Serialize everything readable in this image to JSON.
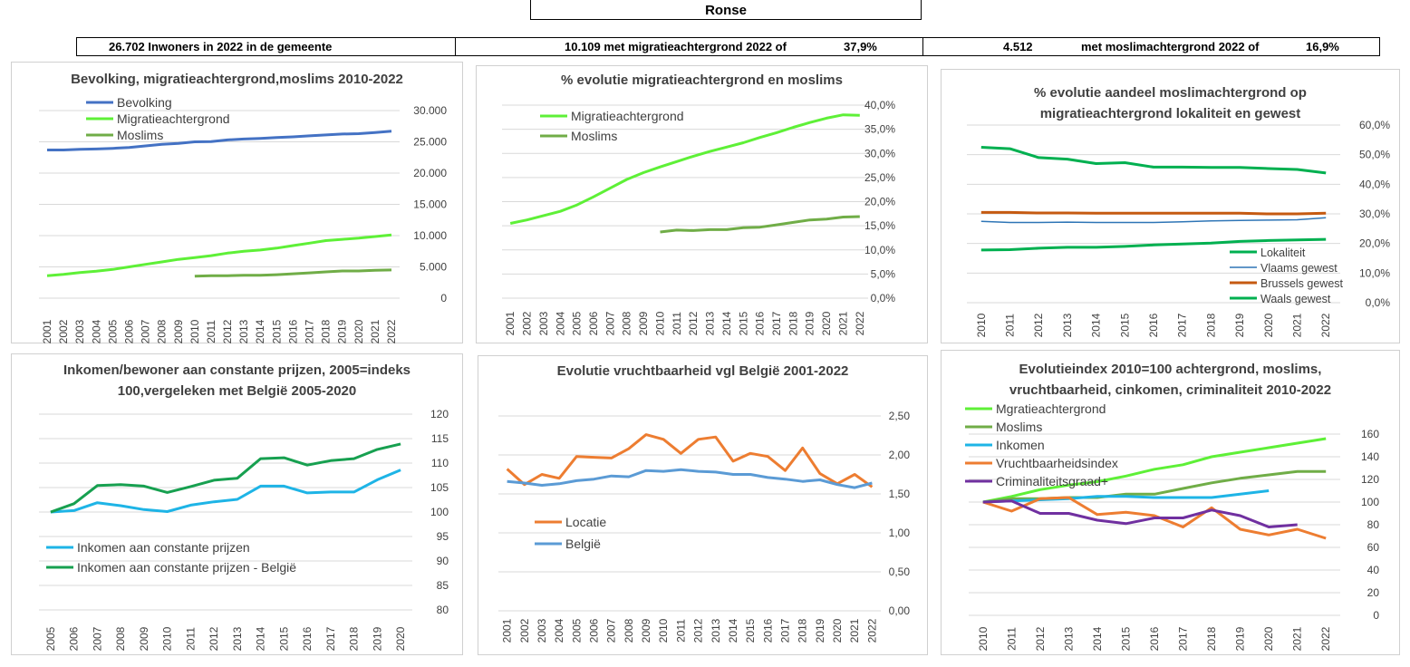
{
  "page_title": "Ronse",
  "stats": {
    "inhabitants": "26.702 Inwoners in 2022 in de gemeente",
    "migration": "10.109 met migratieachtergrond 2022 of",
    "migration_pct": "37,9%",
    "muslim_count": "4.512",
    "muslim_label": "met moslimachtergrond 2022 of",
    "muslim_pct": "16,9%"
  },
  "chart_data": [
    {
      "type": "line",
      "title": "Bevolking, migratieachtergrond,moslims  2010-2022",
      "x": [
        "2001",
        "2002",
        "2003",
        "2004",
        "2005",
        "2006",
        "2007",
        "2008",
        "2009",
        "2010",
        "2011",
        "2012",
        "2013",
        "2014",
        "2015",
        "2016",
        "2017",
        "2018",
        "2019",
        "2020",
        "2021",
        "2022"
      ],
      "ylim": [
        0,
        30000
      ],
      "yticks": [
        "0",
        "5.000",
        "10.000",
        "15.000",
        "20.000",
        "25.000",
        "30.000"
      ],
      "ytick_values": [
        0,
        5000,
        10000,
        15000,
        20000,
        25000,
        30000
      ],
      "legend": "top-left",
      "series": [
        {
          "name": "Bevolking",
          "color": "#4472c4",
          "values": [
            23700,
            23700,
            23800,
            23850,
            23950,
            24100,
            24350,
            24600,
            24750,
            25000,
            25050,
            25300,
            25450,
            25550,
            25700,
            25800,
            25950,
            26100,
            26250,
            26300,
            26500,
            26702
          ]
        },
        {
          "name": "Migratieachtergrond",
          "color": "#5ef037",
          "values": [
            3600,
            3800,
            4100,
            4300,
            4600,
            5000,
            5400,
            5800,
            6200,
            6500,
            6800,
            7200,
            7500,
            7700,
            8000,
            8400,
            8800,
            9200,
            9400,
            9600,
            9850,
            10109
          ]
        },
        {
          "name": "Moslims",
          "color": "#70ad47",
          "values": [
            null,
            null,
            null,
            null,
            null,
            null,
            null,
            null,
            null,
            3500,
            3600,
            3600,
            3650,
            3650,
            3750,
            3900,
            4050,
            4200,
            4350,
            4350,
            4450,
            4512
          ]
        }
      ]
    },
    {
      "type": "line",
      "title": "% evolutie migratieachtergrond  en moslims",
      "x": [
        "2001",
        "2002",
        "2003",
        "2004",
        "2005",
        "2006",
        "2007",
        "2008",
        "2009",
        "2010",
        "2011",
        "2012",
        "2013",
        "2014",
        "2015",
        "2016",
        "2017",
        "2018",
        "2019",
        "2020",
        "2021",
        "2022"
      ],
      "ylim": [
        0,
        0.4
      ],
      "yticks": [
        "0,0%",
        "5,0%",
        "10,0%",
        "15,0%",
        "20,0%",
        "25,0%",
        "30,0%",
        "35,0%",
        "40,0%"
      ],
      "ytick_values": [
        0,
        0.05,
        0.1,
        0.15,
        0.2,
        0.25,
        0.3,
        0.35,
        0.4
      ],
      "legend": "top-left",
      "series": [
        {
          "name": "Migratieachtergrond",
          "color": "#5ef037",
          "values": [
            0.155,
            0.162,
            0.171,
            0.18,
            0.193,
            0.21,
            0.228,
            0.246,
            0.26,
            0.272,
            0.283,
            0.294,
            0.304,
            0.313,
            0.322,
            0.333,
            0.343,
            0.354,
            0.364,
            0.373,
            0.38,
            0.379
          ]
        },
        {
          "name": "Moslims",
          "color": "#70ad47",
          "values": [
            null,
            null,
            null,
            null,
            null,
            null,
            null,
            null,
            null,
            0.137,
            0.141,
            0.14,
            0.142,
            0.142,
            0.146,
            0.147,
            0.152,
            0.157,
            0.162,
            0.164,
            0.168,
            0.169
          ]
        }
      ]
    },
    {
      "type": "line",
      "title": "% evolutie aandeel moslimachtergrond op migratieachtergrond lokaliteit  en gewest",
      "x": [
        "2010",
        "2011",
        "2012",
        "2013",
        "2014",
        "2015",
        "2016",
        "2017",
        "2018",
        "2019",
        "2020",
        "2021",
        "2022"
      ],
      "ylim": [
        0,
        0.6
      ],
      "yticks": [
        "0,0%",
        "10,0%",
        "20,0%",
        "30,0%",
        "40,0%",
        "50,0%",
        "60,0%"
      ],
      "ytick_values": [
        0,
        0.1,
        0.2,
        0.3,
        0.4,
        0.5,
        0.6
      ],
      "legend": "bottom-right",
      "series": [
        {
          "name": "Lokaliteit",
          "color": "#00b050",
          "values": [
            0.525,
            0.52,
            0.49,
            0.485,
            0.47,
            0.473,
            0.458,
            0.458,
            0.457,
            0.457,
            0.453,
            0.45,
            0.438
          ]
        },
        {
          "name": "Vlaams gewest",
          "color": "#2e75b6",
          "values": [
            0.275,
            0.271,
            0.271,
            0.272,
            0.271,
            0.271,
            0.271,
            0.273,
            0.276,
            0.278,
            0.279,
            0.28,
            0.287
          ]
        },
        {
          "name": "Brussels gewest",
          "color": "#c55a11",
          "values": [
            0.305,
            0.305,
            0.303,
            0.303,
            0.302,
            0.302,
            0.302,
            0.302,
            0.302,
            0.302,
            0.3,
            0.3,
            0.302
          ]
        },
        {
          "name": "Waals gewest",
          "color": "#00b050",
          "values": [
            0.178,
            0.179,
            0.184,
            0.187,
            0.187,
            0.19,
            0.195,
            0.198,
            0.201,
            0.207,
            0.21,
            0.212,
            0.214
          ]
        }
      ]
    },
    {
      "type": "line",
      "title": "Inkomen/bewoner aan constante prijzen, 2005=indeks 100,vergeleken met België 2005-2020",
      "x": [
        "2005",
        "2006",
        "2007",
        "2008",
        "2009",
        "2010",
        "2011",
        "2012",
        "2013",
        "2014",
        "2015",
        "2016",
        "2017",
        "2018",
        "2019",
        "2020"
      ],
      "ylim": [
        80,
        120
      ],
      "yticks": [
        "80",
        "85",
        "90",
        "95",
        "100",
        "105",
        "110",
        "115",
        "120"
      ],
      "ytick_values": [
        80,
        85,
        90,
        95,
        100,
        105,
        110,
        115,
        120
      ],
      "legend": "bottom-left",
      "series": [
        {
          "name": "Inkomen aan constante prijzen",
          "color": "#1eb4e6",
          "values": [
            100,
            100.3,
            101.9,
            101.3,
            100.5,
            100.1,
            101.4,
            102.1,
            102.6,
            105.3,
            105.3,
            103.9,
            104.1,
            104.1,
            106.6,
            108.6
          ]
        },
        {
          "name": "Inkomen aan constante prijzen - België",
          "color": "#17a050",
          "values": [
            100,
            101.7,
            105.4,
            105.6,
            105.3,
            104.0,
            105.2,
            106.5,
            106.9,
            110.9,
            111.1,
            109.6,
            110.5,
            110.9,
            112.8,
            113.9
          ]
        }
      ]
    },
    {
      "type": "line",
      "title": "Evolutie vruchtbaarheid vgl België 2001-2022",
      "x": [
        "2001",
        "2002",
        "2003",
        "2004",
        "2005",
        "2006",
        "2007",
        "2008",
        "2009",
        "2010",
        "2011",
        "2012",
        "2013",
        "2014",
        "2015",
        "2016",
        "2017",
        "2018",
        "2019",
        "2020",
        "2021",
        "2022"
      ],
      "ylim": [
        0,
        2.5
      ],
      "yticks": [
        "0,00",
        "0,50",
        "1,00",
        "1,50",
        "2,00",
        "2,50"
      ],
      "ytick_values": [
        0,
        0.5,
        1.0,
        1.5,
        2.0,
        2.5
      ],
      "legend": "middle-left",
      "series": [
        {
          "name": "Locatie",
          "color": "#ed7d31",
          "values": [
            1.82,
            1.62,
            1.75,
            1.7,
            1.98,
            1.97,
            1.96,
            2.08,
            2.26,
            2.2,
            2.02,
            2.2,
            2.23,
            1.92,
            2.02,
            1.98,
            1.8,
            2.09,
            1.76,
            1.63,
            1.75,
            1.59
          ]
        },
        {
          "name": "België",
          "color": "#5b9bd5",
          "values": [
            1.66,
            1.64,
            1.61,
            1.63,
            1.67,
            1.69,
            1.73,
            1.72,
            1.8,
            1.79,
            1.81,
            1.79,
            1.78,
            1.75,
            1.75,
            1.71,
            1.69,
            1.66,
            1.68,
            1.62,
            1.58,
            1.64
          ]
        }
      ]
    },
    {
      "type": "line",
      "title": "Evolutieindex 2010=100 achtergrond, moslims, vruchtbaarheid, cinkomen, criminaliteit  2010-2022",
      "x": [
        "2010",
        "2011",
        "2012",
        "2013",
        "2014",
        "2015",
        "2016",
        "2017",
        "2018",
        "2019",
        "2020",
        "2021",
        "2022"
      ],
      "ylim": [
        0,
        160
      ],
      "yticks": [
        "0",
        "20",
        "40",
        "60",
        "80",
        "100",
        "120",
        "140",
        "160"
      ],
      "ytick_values": [
        0,
        20,
        40,
        60,
        80,
        100,
        120,
        140,
        160
      ],
      "legend": "top-left",
      "series": [
        {
          "name": "Mgratieachtergrond",
          "color": "#5ef037",
          "values": [
            100,
            105,
            111,
            115,
            118,
            123,
            129,
            133,
            140,
            144,
            148,
            152,
            156
          ]
        },
        {
          "name": "Moslims",
          "color": "#70ad47",
          "values": [
            100,
            103,
            103,
            104,
            104,
            107,
            107,
            112,
            117,
            121,
            124,
            127,
            127
          ]
        },
        {
          "name": "Inkomen",
          "color": "#1eb4e6",
          "values": [
            100,
            101,
            102,
            103,
            105,
            105,
            104,
            104,
            104,
            107,
            110,
            null,
            null
          ]
        },
        {
          "name": "Vruchtbaarheidsindex",
          "color": "#ed7d31",
          "values": [
            100,
            92,
            103,
            104,
            89,
            91,
            88,
            78,
            95,
            76,
            71,
            76,
            68
          ]
        },
        {
          "name": "Criminaliteitsgraad+",
          "color": "#7030a0",
          "values": [
            100,
            101,
            90,
            90,
            84,
            81,
            86,
            86,
            93,
            88,
            78,
            80,
            null
          ]
        }
      ]
    }
  ]
}
